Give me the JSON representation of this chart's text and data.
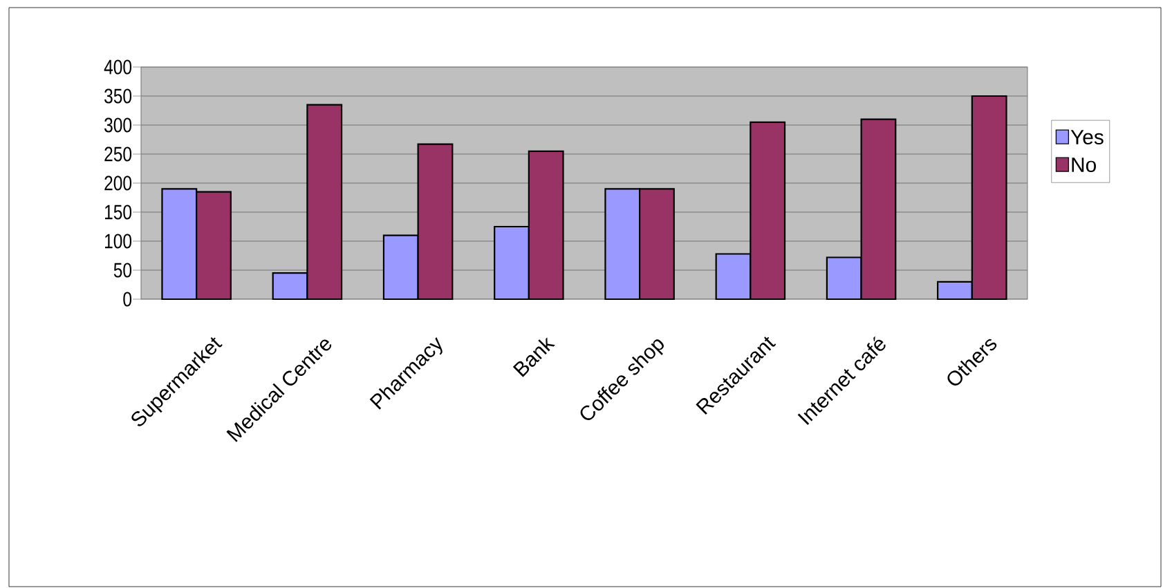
{
  "chart_data": {
    "type": "bar",
    "categories": [
      "Supermarket",
      "Medical Centre",
      "Pharmacy",
      "Bank",
      "Coffee shop",
      "Restaurant",
      "Internet café",
      "Others"
    ],
    "series": [
      {
        "name": "Yes",
        "color": "#9999ff",
        "values": [
          190,
          45,
          110,
          125,
          190,
          78,
          72,
          30
        ]
      },
      {
        "name": "No",
        "color": "#993366",
        "values": [
          185,
          335,
          267,
          255,
          190,
          305,
          310,
          350
        ]
      }
    ],
    "ylim": [
      0,
      400
    ],
    "yticks": [
      0,
      50,
      100,
      150,
      200,
      250,
      300,
      350,
      400
    ],
    "grid": "y",
    "legend": "right"
  }
}
